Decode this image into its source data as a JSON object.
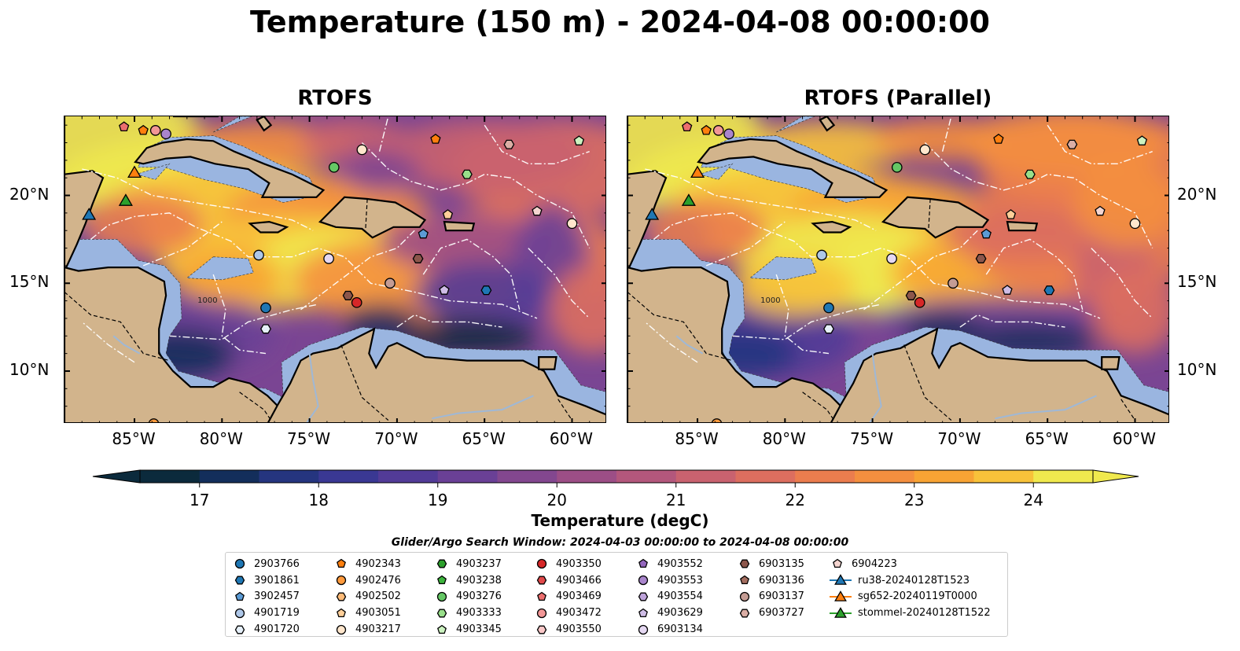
{
  "title": "Temperature (150 m) - 2024-04-08 00:00:00",
  "panels": [
    {
      "title": "RTOFS"
    },
    {
      "title": "RTOFS (Parallel)"
    }
  ],
  "axes": {
    "lon_ticks": [
      "85°W",
      "80°W",
      "75°W",
      "70°W",
      "65°W",
      "60°W"
    ],
    "lat_ticks": [
      "20°N",
      "15°N",
      "10°N"
    ],
    "lon_range": [
      -89,
      -58
    ],
    "lat_range": [
      7,
      24.5
    ]
  },
  "colorbar": {
    "label": "Temperature (degC)",
    "ticks": [
      "17",
      "18",
      "19",
      "20",
      "21",
      "22",
      "23",
      "24"
    ],
    "range": [
      16.5,
      24.5
    ],
    "colors": [
      "#0b2a3c",
      "#132e5b",
      "#25357f",
      "#3a3893",
      "#523b97",
      "#6a4096",
      "#83478f",
      "#9c4e86",
      "#b3577c",
      "#c9626f",
      "#dc6e5f",
      "#eb7d4e",
      "#f48f3f",
      "#f8a334",
      "#f8c23a",
      "#f0e94e"
    ]
  },
  "search_window": "Glider/Argo Search Window: 2024-04-03 00:00:00 to 2024-04-08 00:00:00",
  "legend": {
    "columns": [
      [
        {
          "label": "2903766",
          "shape": "circle",
          "color": "#1f77b4"
        },
        {
          "label": "3901861",
          "shape": "hexagon",
          "color": "#1f77b4"
        },
        {
          "label": "3902457",
          "shape": "pentagon",
          "color": "#5b9bd5"
        },
        {
          "label": "4901719",
          "shape": "circle",
          "color": "#aec7e8"
        },
        {
          "label": "4901720",
          "shape": "hexagon",
          "color": "#e6f0fa"
        }
      ],
      [
        {
          "label": "4902343",
          "shape": "pentagon",
          "color": "#ff7f0e"
        },
        {
          "label": "4902476",
          "shape": "circle",
          "color": "#ff9a3c"
        },
        {
          "label": "4902502",
          "shape": "hexagon",
          "color": "#ffbb78"
        },
        {
          "label": "4903051",
          "shape": "pentagon",
          "color": "#ffcf99"
        },
        {
          "label": "4903217",
          "shape": "circle",
          "color": "#ffe6cc"
        }
      ],
      [
        {
          "label": "4903237",
          "shape": "hexagon",
          "color": "#2ca02c"
        },
        {
          "label": "4903238",
          "shape": "pentagon",
          "color": "#3cb43c"
        },
        {
          "label": "4903276",
          "shape": "circle",
          "color": "#65c765"
        },
        {
          "label": "4903333",
          "shape": "hexagon",
          "color": "#98df8a"
        },
        {
          "label": "4903345",
          "shape": "pentagon",
          "color": "#ccf2c0"
        }
      ],
      [
        {
          "label": "4903350",
          "shape": "circle",
          "color": "#d62728"
        },
        {
          "label": "4903466",
          "shape": "hexagon",
          "color": "#e0494a"
        },
        {
          "label": "4903469",
          "shape": "pentagon",
          "color": "#ec6e6e"
        },
        {
          "label": "4903472",
          "shape": "circle",
          "color": "#f29696"
        },
        {
          "label": "4903550",
          "shape": "hexagon",
          "color": "#fac8c8"
        }
      ],
      [
        {
          "label": "4903552",
          "shape": "pentagon",
          "color": "#9467bd"
        },
        {
          "label": "4903553",
          "shape": "circle",
          "color": "#a985cc"
        },
        {
          "label": "4903554",
          "shape": "hexagon",
          "color": "#bea3da"
        },
        {
          "label": "4903629",
          "shape": "pentagon",
          "color": "#cfbde6"
        },
        {
          "label": "6903134",
          "shape": "circle",
          "color": "#e5d8f2"
        }
      ],
      [
        {
          "label": "6903135",
          "shape": "hexagon",
          "color": "#8c564b"
        },
        {
          "label": "6903136",
          "shape": "pentagon",
          "color": "#a46e60"
        },
        {
          "label": "6903137",
          "shape": "circle",
          "color": "#c49c94"
        },
        {
          "label": "6903727",
          "shape": "hexagon",
          "color": "#dbaea5"
        }
      ],
      [
        {
          "label": "6904223",
          "shape": "pentagon",
          "color": "#f5d5d0"
        },
        {
          "label": "ru38-20240128T1523",
          "shape": "triangle",
          "color": "#1f77b4",
          "line": true
        },
        {
          "label": "sg652-20240119T0000",
          "shape": "triangle",
          "color": "#ff7f0e",
          "line": true
        },
        {
          "label": "stommel-20240128T1522",
          "shape": "triangle",
          "color": "#2ca02c",
          "line": true
        }
      ]
    ]
  },
  "contour_labels": [
    "1000"
  ],
  "markers": [
    {
      "lon": -85.6,
      "lat": 23.9,
      "shape": "pentagon",
      "color": "#ec6e6e"
    },
    {
      "lon": -84.5,
      "lat": 23.7,
      "shape": "pentagon",
      "color": "#ff7f0e"
    },
    {
      "lon": -83.8,
      "lat": 23.7,
      "shape": "circle",
      "color": "#f29696"
    },
    {
      "lon": -83.2,
      "lat": 23.5,
      "shape": "circle",
      "color": "#a985cc"
    },
    {
      "lon": -85.0,
      "lat": 21.3,
      "shape": "triangle",
      "color": "#ff7f0e"
    },
    {
      "lon": -85.5,
      "lat": 19.7,
      "shape": "triangle",
      "color": "#2ca02c"
    },
    {
      "lon": -87.6,
      "lat": 18.9,
      "shape": "triangle",
      "color": "#1f77b4"
    },
    {
      "lon": -73.6,
      "lat": 21.6,
      "shape": "circle",
      "color": "#65c765"
    },
    {
      "lon": -72.0,
      "lat": 22.6,
      "shape": "circle",
      "color": "#ffe6cc"
    },
    {
      "lon": -67.8,
      "lat": 23.2,
      "shape": "pentagon",
      "color": "#ff7f0e"
    },
    {
      "lon": -63.6,
      "lat": 22.9,
      "shape": "hexagon",
      "color": "#dbaea5"
    },
    {
      "lon": -59.6,
      "lat": 23.1,
      "shape": "pentagon",
      "color": "#ccf2c0"
    },
    {
      "lon": -66.0,
      "lat": 21.2,
      "shape": "hexagon",
      "color": "#98df8a"
    },
    {
      "lon": -67.1,
      "lat": 18.9,
      "shape": "pentagon",
      "color": "#ffcf99"
    },
    {
      "lon": -62.0,
      "lat": 19.1,
      "shape": "pentagon",
      "color": "#f5d5d0"
    },
    {
      "lon": -60.0,
      "lat": 18.4,
      "shape": "circle",
      "color": "#ffe6cc"
    },
    {
      "lon": -68.5,
      "lat": 17.8,
      "shape": "pentagon",
      "color": "#5b9bd5"
    },
    {
      "lon": -77.9,
      "lat": 16.6,
      "shape": "circle",
      "color": "#aec7e8"
    },
    {
      "lon": -73.9,
      "lat": 16.4,
      "shape": "circle",
      "color": "#e5d8f2"
    },
    {
      "lon": -68.8,
      "lat": 16.4,
      "shape": "hexagon",
      "color": "#8c564b"
    },
    {
      "lon": -70.4,
      "lat": 15.0,
      "shape": "circle",
      "color": "#c49c94"
    },
    {
      "lon": -72.8,
      "lat": 14.3,
      "shape": "hexagon",
      "color": "#8c564b"
    },
    {
      "lon": -72.3,
      "lat": 13.9,
      "shape": "circle",
      "color": "#d62728"
    },
    {
      "lon": -67.3,
      "lat": 14.6,
      "shape": "pentagon",
      "color": "#cfbde6"
    },
    {
      "lon": -64.9,
      "lat": 14.6,
      "shape": "hexagon",
      "color": "#1f77b4"
    },
    {
      "lon": -77.5,
      "lat": 13.6,
      "shape": "circle",
      "color": "#1f77b4"
    },
    {
      "lon": -77.5,
      "lat": 12.4,
      "shape": "hexagon",
      "color": "#e6f0fa"
    },
    {
      "lon": -83.9,
      "lat": 7.0,
      "shape": "circle",
      "color": "#ff9a3c"
    }
  ]
}
